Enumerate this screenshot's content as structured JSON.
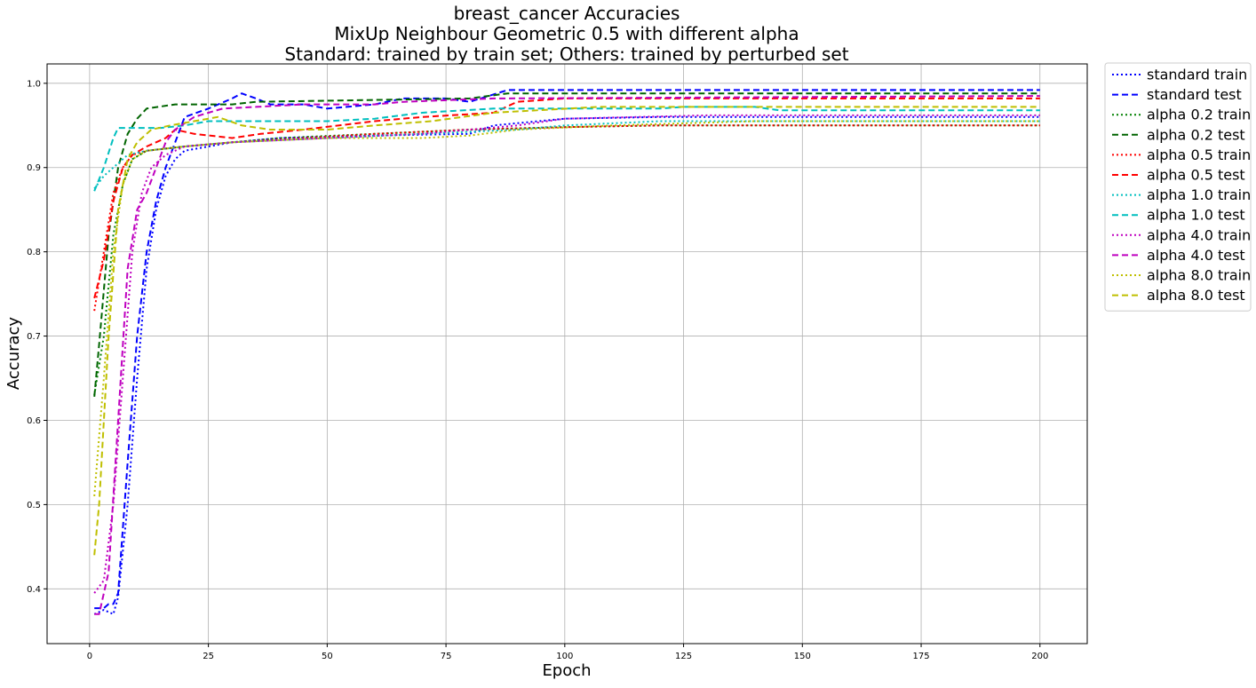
{
  "chart_data": {
    "type": "line",
    "title_lines": [
      "breast_cancer Accuracies",
      "MixUp Neighbour Geometric 0.5 with different alpha",
      "Standard: trained by train set; Others: trained by perturbed set"
    ],
    "xlabel": "Epoch",
    "ylabel": "Accuracy",
    "xlim": [
      -8.95,
      209.95
    ],
    "ylim": [
      0.335,
      1.023
    ],
    "xticks": [
      0,
      25,
      50,
      75,
      100,
      125,
      150,
      175,
      200
    ],
    "yticks": [
      0.4,
      0.5,
      0.6,
      0.7,
      0.8,
      0.9,
      1.0
    ],
    "ytick_labels": [
      "0.4",
      "0.5",
      "0.6",
      "0.7",
      "0.8",
      "0.9",
      "1.0"
    ],
    "grid": true,
    "legend_position": "outside-right-top",
    "series": [
      {
        "name": "standard train",
        "color": "#0000ff",
        "style": "dotted",
        "points": [
          [
            1,
            0.37
          ],
          [
            3,
            0.375
          ],
          [
            5,
            0.37
          ],
          [
            6,
            0.39
          ],
          [
            8,
            0.5
          ],
          [
            10,
            0.65
          ],
          [
            12,
            0.78
          ],
          [
            14,
            0.85
          ],
          [
            16,
            0.89
          ],
          [
            18,
            0.91
          ],
          [
            20,
            0.92
          ],
          [
            30,
            0.93
          ],
          [
            40,
            0.935
          ],
          [
            60,
            0.938
          ],
          [
            80,
            0.94
          ],
          [
            85,
            0.95
          ],
          [
            100,
            0.958
          ],
          [
            120,
            0.96
          ],
          [
            200,
            0.96
          ]
        ]
      },
      {
        "name": "standard test",
        "color": "#0000ff",
        "style": "dashed",
        "points": [
          [
            1,
            0.377
          ],
          [
            3,
            0.377
          ],
          [
            4,
            0.382
          ],
          [
            5,
            0.382
          ],
          [
            6,
            0.395
          ],
          [
            8,
            0.55
          ],
          [
            10,
            0.7
          ],
          [
            12,
            0.8
          ],
          [
            14,
            0.86
          ],
          [
            16,
            0.9
          ],
          [
            18,
            0.93
          ],
          [
            20,
            0.96
          ],
          [
            25,
            0.97
          ],
          [
            30,
            0.982
          ],
          [
            32,
            0.988
          ],
          [
            35,
            0.982
          ],
          [
            38,
            0.975
          ],
          [
            45,
            0.975
          ],
          [
            50,
            0.97
          ],
          [
            60,
            0.975
          ],
          [
            66,
            0.982
          ],
          [
            75,
            0.982
          ],
          [
            80,
            0.978
          ],
          [
            88,
            0.992
          ],
          [
            140,
            0.992
          ],
          [
            200,
            0.992
          ]
        ]
      },
      {
        "name": "alpha 0.2 train",
        "color": "#008000",
        "style": "dotted",
        "points": [
          [
            1,
            0.63
          ],
          [
            3,
            0.7
          ],
          [
            5,
            0.82
          ],
          [
            7,
            0.88
          ],
          [
            9,
            0.91
          ],
          [
            12,
            0.92
          ],
          [
            20,
            0.925
          ],
          [
            30,
            0.93
          ],
          [
            40,
            0.935
          ],
          [
            60,
            0.94
          ],
          [
            80,
            0.945
          ],
          [
            100,
            0.948
          ],
          [
            120,
            0.95
          ],
          [
            140,
            0.95
          ],
          [
            200,
            0.95
          ]
        ]
      },
      {
        "name": "alpha 0.2 test",
        "color": "#006400",
        "style": "dashed",
        "points": [
          [
            1,
            0.628
          ],
          [
            2,
            0.69
          ],
          [
            4,
            0.82
          ],
          [
            6,
            0.9
          ],
          [
            8,
            0.94
          ],
          [
            10,
            0.958
          ],
          [
            12,
            0.97
          ],
          [
            18,
            0.975
          ],
          [
            30,
            0.975
          ],
          [
            35,
            0.978
          ],
          [
            80,
            0.982
          ],
          [
            88,
            0.988
          ],
          [
            200,
            0.988
          ]
        ]
      },
      {
        "name": "alpha 0.5 train",
        "color": "#ff0000",
        "style": "dotted",
        "points": [
          [
            1,
            0.73
          ],
          [
            3,
            0.8
          ],
          [
            5,
            0.87
          ],
          [
            7,
            0.9
          ],
          [
            9,
            0.915
          ],
          [
            12,
            0.92
          ],
          [
            20,
            0.925
          ],
          [
            30,
            0.93
          ],
          [
            45,
            0.935
          ],
          [
            60,
            0.94
          ],
          [
            80,
            0.945
          ],
          [
            100,
            0.948
          ],
          [
            120,
            0.95
          ],
          [
            200,
            0.95
          ]
        ]
      },
      {
        "name": "alpha 0.5 test",
        "color": "#ff0000",
        "style": "dashed",
        "points": [
          [
            1,
            0.745
          ],
          [
            3,
            0.79
          ],
          [
            5,
            0.86
          ],
          [
            7,
            0.9
          ],
          [
            9,
            0.915
          ],
          [
            12,
            0.925
          ],
          [
            16,
            0.935
          ],
          [
            18,
            0.945
          ],
          [
            22,
            0.94
          ],
          [
            30,
            0.935
          ],
          [
            36,
            0.94
          ],
          [
            45,
            0.945
          ],
          [
            60,
            0.955
          ],
          [
            70,
            0.96
          ],
          [
            85,
            0.965
          ],
          [
            90,
            0.978
          ],
          [
            100,
            0.982
          ],
          [
            200,
            0.982
          ]
        ]
      },
      {
        "name": "alpha 1.0 train",
        "color": "#00bfbf",
        "style": "dotted",
        "points": [
          [
            1,
            0.875
          ],
          [
            3,
            0.89
          ],
          [
            5,
            0.9
          ],
          [
            8,
            0.915
          ],
          [
            12,
            0.92
          ],
          [
            20,
            0.925
          ],
          [
            30,
            0.93
          ],
          [
            50,
            0.935
          ],
          [
            70,
            0.94
          ],
          [
            90,
            0.945
          ],
          [
            100,
            0.95
          ],
          [
            120,
            0.955
          ],
          [
            200,
            0.955
          ]
        ]
      },
      {
        "name": "alpha 1.0 test",
        "color": "#00bfbf",
        "style": "dashed",
        "points": [
          [
            1,
            0.872
          ],
          [
            3,
            0.9
          ],
          [
            5,
            0.935
          ],
          [
            6,
            0.947
          ],
          [
            15,
            0.947
          ],
          [
            20,
            0.95
          ],
          [
            25,
            0.955
          ],
          [
            50,
            0.955
          ],
          [
            60,
            0.958
          ],
          [
            70,
            0.965
          ],
          [
            85,
            0.97
          ],
          [
            120,
            0.97
          ],
          [
            125,
            0.972
          ],
          [
            140,
            0.972
          ],
          [
            145,
            0.968
          ],
          [
            200,
            0.968
          ]
        ]
      },
      {
        "name": "alpha 4.0 train",
        "color": "#bf00bf",
        "style": "dotted",
        "points": [
          [
            1,
            0.395
          ],
          [
            3,
            0.41
          ],
          [
            5,
            0.5
          ],
          [
            7,
            0.65
          ],
          [
            9,
            0.8
          ],
          [
            11,
            0.87
          ],
          [
            13,
            0.9
          ],
          [
            16,
            0.915
          ],
          [
            20,
            0.925
          ],
          [
            30,
            0.93
          ],
          [
            50,
            0.935
          ],
          [
            70,
            0.94
          ],
          [
            90,
            0.95
          ],
          [
            100,
            0.958
          ],
          [
            130,
            0.962
          ],
          [
            200,
            0.962
          ]
        ]
      },
      {
        "name": "alpha 4.0 test",
        "color": "#bf00bf",
        "style": "dashed",
        "points": [
          [
            1,
            0.37
          ],
          [
            2,
            0.37
          ],
          [
            4,
            0.42
          ],
          [
            6,
            0.6
          ],
          [
            8,
            0.78
          ],
          [
            10,
            0.85
          ],
          [
            12,
            0.87
          ],
          [
            14,
            0.9
          ],
          [
            16,
            0.93
          ],
          [
            18,
            0.945
          ],
          [
            22,
            0.96
          ],
          [
            25,
            0.965
          ],
          [
            28,
            0.97
          ],
          [
            35,
            0.972
          ],
          [
            45,
            0.975
          ],
          [
            60,
            0.975
          ],
          [
            66,
            0.978
          ],
          [
            85,
            0.982
          ],
          [
            200,
            0.985
          ]
        ]
      },
      {
        "name": "alpha 8.0 train",
        "color": "#bfbf00",
        "style": "dotted",
        "points": [
          [
            1,
            0.51
          ],
          [
            3,
            0.65
          ],
          [
            5,
            0.8
          ],
          [
            7,
            0.88
          ],
          [
            9,
            0.91
          ],
          [
            12,
            0.92
          ],
          [
            20,
            0.925
          ],
          [
            30,
            0.93
          ],
          [
            50,
            0.935
          ],
          [
            70,
            0.935
          ],
          [
            80,
            0.938
          ],
          [
            90,
            0.945
          ],
          [
            110,
            0.95
          ],
          [
            140,
            0.955
          ],
          [
            200,
            0.955
          ]
        ]
      },
      {
        "name": "alpha 8.0 test",
        "color": "#bfbf00",
        "style": "dashed",
        "points": [
          [
            1,
            0.44
          ],
          [
            2,
            0.5
          ],
          [
            4,
            0.7
          ],
          [
            6,
            0.85
          ],
          [
            8,
            0.91
          ],
          [
            10,
            0.93
          ],
          [
            13,
            0.945
          ],
          [
            17,
            0.95
          ],
          [
            22,
            0.955
          ],
          [
            27,
            0.96
          ],
          [
            32,
            0.95
          ],
          [
            38,
            0.945
          ],
          [
            50,
            0.945
          ],
          [
            60,
            0.95
          ],
          [
            72,
            0.955
          ],
          [
            85,
            0.965
          ],
          [
            107,
            0.972
          ],
          [
            200,
            0.972
          ]
        ]
      }
    ]
  }
}
